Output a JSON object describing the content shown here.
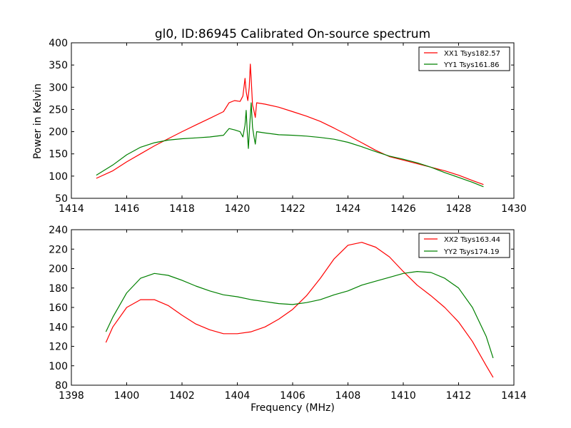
{
  "chart_data": [
    {
      "type": "line",
      "title": "gl0, ID:86945 Calibrated On-source spectrum",
      "xlabel": "",
      "ylabel": "Power in Kelvin",
      "xlim": [
        1414,
        1430
      ],
      "ylim": [
        50,
        400
      ],
      "xticks": [
        1414,
        1416,
        1418,
        1420,
        1422,
        1424,
        1426,
        1428,
        1430
      ],
      "yticks": [
        50,
        100,
        150,
        200,
        250,
        300,
        350,
        400
      ],
      "legend_position": "top-right",
      "series": [
        {
          "name": "XX1 Tsys182.57",
          "color": "#ff0000",
          "points": [
            [
              1414.9,
              95
            ],
            [
              1415.5,
              112
            ],
            [
              1416,
              132
            ],
            [
              1416.5,
              150
            ],
            [
              1417,
              168
            ],
            [
              1417.5,
              184
            ],
            [
              1418,
              200
            ],
            [
              1418.5,
              215
            ],
            [
              1419,
              230
            ],
            [
              1419.5,
              245
            ],
            [
              1419.7,
              265
            ],
            [
              1419.9,
              270
            ],
            [
              1420.1,
              268
            ],
            [
              1420.2,
              280
            ],
            [
              1420.28,
              320
            ],
            [
              1420.32,
              290
            ],
            [
              1420.38,
              270
            ],
            [
              1420.43,
              300
            ],
            [
              1420.47,
              352
            ],
            [
              1420.5,
              320
            ],
            [
              1420.55,
              260
            ],
            [
              1420.6,
              248
            ],
            [
              1420.65,
              232
            ],
            [
              1420.7,
              265
            ],
            [
              1421,
              262
            ],
            [
              1421.5,
              255
            ],
            [
              1422,
              245
            ],
            [
              1422.5,
              235
            ],
            [
              1423,
              223
            ],
            [
              1423.5,
              208
            ],
            [
              1424,
              192
            ],
            [
              1424.5,
              175
            ],
            [
              1425,
              158
            ],
            [
              1425.5,
              144
            ],
            [
              1426,
              136
            ],
            [
              1426.5,
              128
            ],
            [
              1427,
              120
            ],
            [
              1427.5,
              112
            ],
            [
              1428,
              102
            ],
            [
              1428.5,
              90
            ],
            [
              1428.9,
              81
            ]
          ]
        },
        {
          "name": "YY1 Tsys161.86",
          "color": "#008000",
          "points": [
            [
              1414.9,
              102
            ],
            [
              1415.5,
              125
            ],
            [
              1416,
              148
            ],
            [
              1416.5,
              165
            ],
            [
              1417,
              175
            ],
            [
              1417.5,
              181
            ],
            [
              1418,
              184
            ],
            [
              1418.5,
              186
            ],
            [
              1419,
              188
            ],
            [
              1419.5,
              192
            ],
            [
              1419.7,
              207
            ],
            [
              1419.9,
              204
            ],
            [
              1420.1,
              200
            ],
            [
              1420.2,
              188
            ],
            [
              1420.28,
              215
            ],
            [
              1420.32,
              248
            ],
            [
              1420.36,
              200
            ],
            [
              1420.4,
              162
            ],
            [
              1420.45,
              215
            ],
            [
              1420.5,
              265
            ],
            [
              1420.55,
              210
            ],
            [
              1420.6,
              190
            ],
            [
              1420.65,
              172
            ],
            [
              1420.7,
              200
            ],
            [
              1421,
              197
            ],
            [
              1421.5,
              193
            ],
            [
              1422,
              192
            ],
            [
              1422.5,
              190
            ],
            [
              1423,
              187
            ],
            [
              1423.5,
              183
            ],
            [
              1424,
              176
            ],
            [
              1424.5,
              166
            ],
            [
              1425,
              155
            ],
            [
              1425.5,
              145
            ],
            [
              1426,
              138
            ],
            [
              1426.5,
              130
            ],
            [
              1427,
              120
            ],
            [
              1427.5,
              108
            ],
            [
              1428,
              97
            ],
            [
              1428.5,
              86
            ],
            [
              1428.9,
              76
            ]
          ]
        }
      ]
    },
    {
      "type": "line",
      "title": "",
      "xlabel": "Frequency (MHz)",
      "ylabel": "",
      "xlim": [
        1398,
        1414
      ],
      "ylim": [
        80,
        240
      ],
      "xticks": [
        1398,
        1400,
        1402,
        1404,
        1406,
        1408,
        1410,
        1412,
        1414
      ],
      "yticks": [
        80,
        100,
        120,
        140,
        160,
        180,
        200,
        220,
        240
      ],
      "legend_position": "top-right",
      "series": [
        {
          "name": "XX2 Tsys163.44",
          "color": "#ff0000",
          "points": [
            [
              1399.25,
              124
            ],
            [
              1399.5,
              140
            ],
            [
              1400,
              160
            ],
            [
              1400.5,
              168
            ],
            [
              1401,
              168
            ],
            [
              1401.5,
              162
            ],
            [
              1402,
              152
            ],
            [
              1402.5,
              143
            ],
            [
              1403,
              137
            ],
            [
              1403.5,
              133
            ],
            [
              1404,
              133
            ],
            [
              1404.5,
              135
            ],
            [
              1405,
              140
            ],
            [
              1405.5,
              148
            ],
            [
              1406,
              158
            ],
            [
              1406.5,
              172
            ],
            [
              1407,
              190
            ],
            [
              1407.5,
              210
            ],
            [
              1408,
              224
            ],
            [
              1408.5,
              227
            ],
            [
              1409,
              222
            ],
            [
              1409.5,
              212
            ],
            [
              1410,
              197
            ],
            [
              1410.5,
              183
            ],
            [
              1411,
              172
            ],
            [
              1411.5,
              160
            ],
            [
              1412,
              145
            ],
            [
              1412.5,
              125
            ],
            [
              1413,
              100
            ],
            [
              1413.25,
              88
            ]
          ]
        },
        {
          "name": "YY2 Tsys174.19",
          "color": "#008000",
          "points": [
            [
              1399.25,
              135
            ],
            [
              1399.5,
              150
            ],
            [
              1400,
              175
            ],
            [
              1400.5,
              190
            ],
            [
              1401,
              195
            ],
            [
              1401.5,
              193
            ],
            [
              1402,
              188
            ],
            [
              1402.5,
              182
            ],
            [
              1403,
              177
            ],
            [
              1403.5,
              173
            ],
            [
              1404,
              171
            ],
            [
              1404.5,
              168
            ],
            [
              1405,
              166
            ],
            [
              1405.5,
              164
            ],
            [
              1406,
              163
            ],
            [
              1406.5,
              165
            ],
            [
              1407,
              168
            ],
            [
              1407.5,
              173
            ],
            [
              1408,
              177
            ],
            [
              1408.5,
              183
            ],
            [
              1409,
              187
            ],
            [
              1409.5,
              191
            ],
            [
              1410,
              195
            ],
            [
              1410.5,
              197
            ],
            [
              1411,
              196
            ],
            [
              1411.5,
              190
            ],
            [
              1412,
              180
            ],
            [
              1412.5,
              160
            ],
            [
              1413,
              130
            ],
            [
              1413.25,
              108
            ]
          ]
        }
      ]
    }
  ]
}
